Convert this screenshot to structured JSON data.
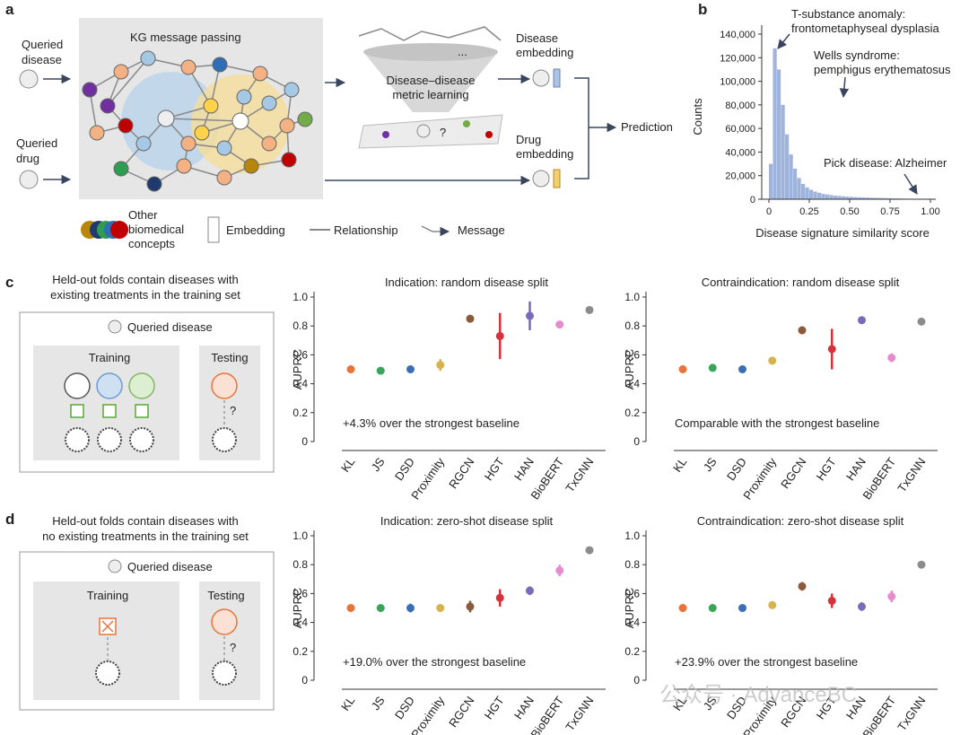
{
  "panel_a": {
    "label": "a",
    "queried_disease": [
      "Queried",
      "disease"
    ],
    "queried_drug": [
      "Queried",
      "drug"
    ],
    "kg_title": "KG message passing",
    "metric_learning": [
      "Disease–disease",
      "metric learning"
    ],
    "ellipsis": "...",
    "question": "?",
    "disease_embedding": [
      "Disease",
      "embedding"
    ],
    "drug_embedding": [
      "Drug",
      "embedding"
    ],
    "prediction": "Prediction",
    "legend": {
      "concepts": [
        "Other",
        "biomedical",
        "concepts"
      ],
      "embedding": "Embedding",
      "relationship": "Relationship",
      "message": "Message"
    }
  },
  "panel_b": {
    "label": "b"
  },
  "panel_c": {
    "label": "c",
    "caption": [
      "Held-out folds contain diseases with",
      "existing treatments in the training set"
    ],
    "queried": "Queried disease",
    "training": "Training",
    "testing": "Testing",
    "question": "?"
  },
  "panel_d": {
    "label": "d",
    "caption": [
      "Held-out folds contain diseases with",
      "no existing treatments in the training set"
    ],
    "queried": "Queried disease",
    "training": "Training",
    "testing": "Testing",
    "question": "?"
  },
  "watermark": "公众号 · AdvanceBC",
  "chart_data": [
    {
      "type": "histogram",
      "xlabel": "Disease signature similarity score",
      "ylabel": "Counts",
      "annotations": [
        [
          "T-substance anomaly:",
          "frontometaphyseal dysplasia"
        ],
        [
          "Wells syndrome:",
          "pemphigus erythematosus"
        ],
        [
          "Pick disease: Alzheimer"
        ]
      ],
      "bins": [
        0,
        0.025,
        0.05,
        0.075,
        0.1,
        0.125,
        0.15,
        0.175,
        0.2,
        0.225,
        0.25,
        0.275,
        0.3,
        0.325,
        0.35,
        0.375,
        0.4,
        0.425,
        0.45,
        0.475,
        0.5,
        0.525,
        0.55,
        0.575,
        0.6,
        0.625,
        0.65,
        0.675,
        0.7,
        0.725,
        0.75,
        0.775,
        0.8,
        0.825,
        0.85,
        0.875,
        0.9,
        0.925,
        0.95,
        0.975,
        1.0
      ],
      "counts": [
        30000,
        128000,
        110000,
        80000,
        55000,
        38000,
        26000,
        18000,
        13000,
        10000,
        8000,
        6500,
        5500,
        4500,
        4000,
        3500,
        3000,
        2800,
        2500,
        2200,
        2000,
        1800,
        1600,
        1500,
        1400,
        1300,
        1200,
        1100,
        1000,
        900,
        800,
        700,
        600,
        500,
        450,
        400,
        350,
        300,
        250,
        200
      ],
      "color": "#9fb4dc",
      "xlim": [
        0,
        1
      ],
      "ylim": [
        0,
        140000
      ],
      "xticks": [
        0,
        0.25,
        {
          "value": 0.5,
          "label": "0.50"
        },
        0.75,
        {
          "value": 1,
          "label": "1.00"
        }
      ],
      "yticks": [
        0,
        {
          "value": 20000,
          "label": "20,000"
        },
        {
          "value": 40000,
          "label": "40,000"
        },
        {
          "value": 60000,
          "label": "60,000"
        },
        {
          "value": 80000,
          "label": "80,000"
        },
        {
          "value": 100000,
          "label": "100,000"
        },
        {
          "value": 120000,
          "label": "120,000"
        },
        {
          "value": 140000,
          "label": "140,000"
        }
      ]
    },
    {
      "type": "dot",
      "title": "Indication: random disease split",
      "ylabel": "AUPRC",
      "annotation": "+4.3% over the strongest baseline",
      "categories": [
        "KL",
        "JS",
        "DSD",
        "Proximity",
        "RGCN",
        "HGT",
        "HAN",
        "BioBERT",
        "TxGNN"
      ],
      "values": [
        0.5,
        0.49,
        0.5,
        0.53,
        0.85,
        0.73,
        0.87,
        0.81,
        0.91
      ],
      "errors": [
        0.01,
        0.01,
        0.02,
        0.04,
        0.02,
        0.16,
        0.1,
        0.02,
        0.02
      ],
      "colors": [
        "#e8743b",
        "#3aa55a",
        "#3a6fb5",
        "#d8b24a",
        "#8b5a3c",
        "#d7323a",
        "#7a6ab8",
        "#e58ccf",
        "#8c8c8c"
      ],
      "ylim": [
        0,
        1
      ],
      "yticks": [
        0,
        0.2,
        0.4,
        0.6,
        0.8,
        {
          "value": 1,
          "label": "1.0"
        }
      ]
    },
    {
      "type": "dot",
      "title": "Contraindication: random disease split",
      "ylabel": "AUPRC",
      "annotation": "Comparable with the strongest baseline",
      "categories": [
        "KL",
        "JS",
        "DSD",
        "Proximity",
        "RGCN",
        "HGT",
        "HAN",
        "BioBERT",
        "TxGNN"
      ],
      "values": [
        0.5,
        0.51,
        0.5,
        0.56,
        0.77,
        0.64,
        0.84,
        0.58,
        0.83
      ],
      "errors": [
        0.01,
        0.01,
        0.02,
        0.01,
        0.02,
        0.14,
        0.01,
        0.03,
        0.01
      ],
      "colors": [
        "#e8743b",
        "#3aa55a",
        "#3a6fb5",
        "#d8b24a",
        "#8b5a3c",
        "#d7323a",
        "#7a6ab8",
        "#e58ccf",
        "#8c8c8c"
      ],
      "ylim": [
        0,
        1
      ],
      "yticks": [
        0,
        0.2,
        0.4,
        0.6,
        0.8,
        {
          "value": 1,
          "label": "1.0"
        }
      ]
    },
    {
      "type": "dot",
      "title": "Indication: zero-shot disease split",
      "ylabel": "AUPRC",
      "annotation": "+19.0% over the strongest baseline",
      "categories": [
        "KL",
        "JS",
        "DSD",
        "Proximity",
        "RGCN",
        "HGT",
        "HAN",
        "BioBERT",
        "TxGNN"
      ],
      "values": [
        0.5,
        0.5,
        0.5,
        0.5,
        0.51,
        0.57,
        0.62,
        0.76,
        0.9
      ],
      "errors": [
        0.02,
        0.01,
        0.03,
        0.01,
        0.04,
        0.06,
        0.03,
        0.04,
        0.01
      ],
      "colors": [
        "#e8743b",
        "#3aa55a",
        "#3a6fb5",
        "#d8b24a",
        "#8b5a3c",
        "#d7323a",
        "#7a6ab8",
        "#e58ccf",
        "#8c8c8c"
      ],
      "ylim": [
        0,
        1
      ],
      "yticks": [
        0,
        0.2,
        0.4,
        0.6,
        0.8,
        {
          "value": 1,
          "label": "1.0"
        }
      ]
    },
    {
      "type": "dot",
      "title": "Contraindication: zero-shot disease split",
      "ylabel": "AUPRC",
      "annotation": "+23.9% over the strongest baseline",
      "categories": [
        "KL",
        "JS",
        "DSD",
        "Proximity",
        "RGCN",
        "HGT",
        "HAN",
        "BioBERT",
        "TxGNN"
      ],
      "values": [
        0.5,
        0.5,
        0.5,
        0.52,
        0.65,
        0.55,
        0.51,
        0.58,
        0.8
      ],
      "errors": [
        0.01,
        0.01,
        0.02,
        0.01,
        0.03,
        0.05,
        0.03,
        0.04,
        0.01
      ],
      "colors": [
        "#e8743b",
        "#3aa55a",
        "#3a6fb5",
        "#d8b24a",
        "#8b5a3c",
        "#d7323a",
        "#7a6ab8",
        "#e58ccf",
        "#8c8c8c"
      ],
      "ylim": [
        0,
        1
      ],
      "yticks": [
        0,
        0.2,
        0.4,
        0.6,
        0.8,
        {
          "value": 1,
          "label": "1.0"
        }
      ]
    }
  ]
}
